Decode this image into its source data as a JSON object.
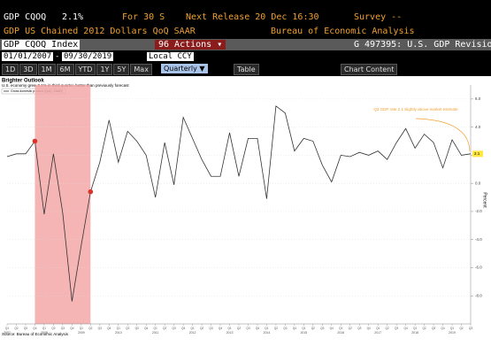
{
  "header": {
    "ticker": "GDP CQOQ",
    "value": "2.1%",
    "period": "For 30 S",
    "next_release": "Next Release 20 Dec 16:30",
    "survey": "Survey --",
    "description": "GDP US Chained 2012 Dollars QoQ SAAR",
    "source": "Bureau of Economic Analysis"
  },
  "toolbar": {
    "security": "GDP CQOQ Index",
    "actions": "96 Actions ▾",
    "page": "G 497395: U.S. GDP Revision",
    "start_date": "01/01/2007",
    "end_date": "09/30/2019",
    "currency": "Local CCY",
    "ranges": [
      "1D",
      "3D",
      "1M",
      "6M",
      "YTD",
      "1Y",
      "5Y",
      "Max"
    ],
    "frequency": "Quarterly ▼",
    "table": "Table",
    "chart_content": "Chart Content"
  },
  "chart_data": {
    "type": "line",
    "title": "Brighter Outlook",
    "subtitle": "U.S. economy grew 2.1% in third quarter, better than previously forecast",
    "categories": [
      "Q1",
      "Q2",
      "Q3",
      "Q4",
      "Q1",
      "Q2",
      "Q3",
      "Q4",
      "Q1",
      "Q2",
      "Q3",
      "Q4",
      "Q1",
      "Q2",
      "Q3",
      "Q4",
      "Q1",
      "Q2",
      "Q3",
      "Q4",
      "Q1",
      "Q2",
      "Q3",
      "Q4",
      "Q1",
      "Q2",
      "Q3",
      "Q4",
      "Q1",
      "Q2",
      "Q3",
      "Q4",
      "Q1",
      "Q2",
      "Q3",
      "Q4",
      "Q1",
      "Q2",
      "Q3",
      "Q4",
      "Q1",
      "Q2",
      "Q3",
      "Q4",
      "Q1",
      "Q2",
      "Q3",
      "Q4",
      "Q1",
      "Q2",
      "Q3"
    ],
    "years": [
      "2007",
      "2008",
      "2009",
      "2010",
      "2011",
      "2012",
      "2013",
      "2014",
      "2015",
      "2016",
      "2017",
      "2018",
      "2019"
    ],
    "series": [
      {
        "name": "Gross domestic product (QoQ, SAAR)",
        "color": "#333333",
        "values": [
          1.9,
          2.1,
          2.1,
          3.0,
          -2.2,
          2.1,
          -2.1,
          -8.4,
          -4.4,
          -0.6,
          1.5,
          4.5,
          1.5,
          3.7,
          3.0,
          2.0,
          -1.0,
          2.9,
          -0.1,
          4.7,
          3.2,
          1.7,
          0.5,
          0.5,
          3.6,
          0.5,
          3.2,
          3.2,
          -1.1,
          5.5,
          5.0,
          2.3,
          3.2,
          3.0,
          1.3,
          0.1,
          2.0,
          1.9,
          2.2,
          2.0,
          2.3,
          1.7,
          2.9,
          3.9,
          2.5,
          3.5,
          2.9,
          1.1,
          3.1,
          2.0,
          2.1
        ]
      }
    ],
    "highlight_range": [
      3,
      9
    ],
    "highlight_color": "#f4a3a3",
    "marker_color": "#d9342b",
    "annotation": "Q3 GDP rate 2.1 slightly above market estimate",
    "ylabel": "Percent",
    "source": "Source: Bureau of Economic Analysis",
    "ylim": [
      -10,
      7
    ],
    "yticks": [
      {
        "value": -8,
        "label": "-8.0"
      },
      {
        "value": -6,
        "label": "-6.0"
      },
      {
        "value": -4,
        "label": "-4.0"
      },
      {
        "value": -2,
        "label": "-2.0"
      },
      {
        "value": 0,
        "label": "0.0"
      },
      {
        "value": 2,
        "label": "2.0"
      },
      {
        "value": 4,
        "label": "4.0"
      },
      {
        "value": 6,
        "label": "6.0"
      }
    ],
    "grid": true
  }
}
